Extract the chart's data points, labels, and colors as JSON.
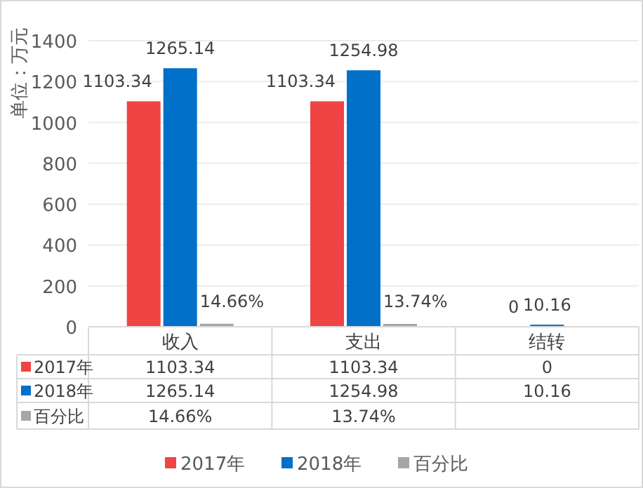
{
  "chart_data": {
    "type": "bar",
    "ylabel": "单位：万元",
    "categories": [
      "收入",
      "支出",
      "结转"
    ],
    "series": [
      {
        "name": "2017年",
        "color": "#f04444",
        "values": [
          1103.34,
          1103.34,
          0
        ],
        "value_labels": [
          "1103.34",
          "1103.34",
          "0"
        ]
      },
      {
        "name": "2018年",
        "color": "#0070c8",
        "values": [
          1265.14,
          1254.98,
          10.16
        ],
        "value_labels": [
          "1265.14",
          "1254.98",
          "10.16"
        ]
      },
      {
        "name": "百分比",
        "color": "#a6a6a6",
        "values": [
          14.66,
          13.74,
          null
        ],
        "value_labels": [
          "14.66%",
          "13.74%",
          null
        ]
      }
    ],
    "ylim": [
      0,
      1400
    ],
    "yticks": [
      0,
      200,
      400,
      600,
      800,
      1000,
      1200,
      1400
    ],
    "grid": "y",
    "legend": "bottom"
  }
}
